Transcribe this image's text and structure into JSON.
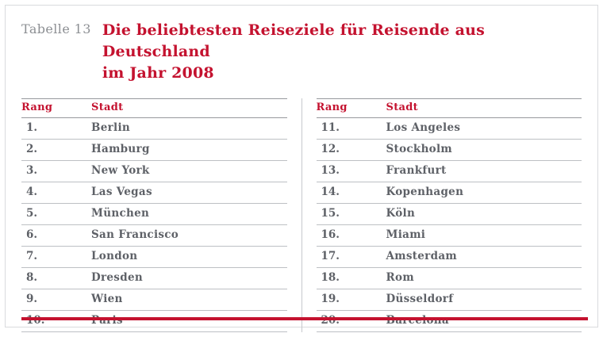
{
  "page": {
    "title_prefix": "Tabelle 13",
    "title_line1": "Die beliebtesten Reiseziele für Reisende aus Deutschland",
    "title_line2": "im Jahr 2008",
    "accent_color": "#c4122f",
    "body_text_color": "#5e6167"
  },
  "table": {
    "columns": {
      "rank": "Rang",
      "city": "Stadt"
    },
    "left_rows": [
      {
        "rang": "1.",
        "stadt": "Berlin"
      },
      {
        "rang": "2.",
        "stadt": "Hamburg"
      },
      {
        "rang": "3.",
        "stadt": "New York"
      },
      {
        "rang": "4.",
        "stadt": "Las Vegas"
      },
      {
        "rang": "5.",
        "stadt": "München"
      },
      {
        "rang": "6.",
        "stadt": "San Francisco"
      },
      {
        "rang": "7.",
        "stadt": "London"
      },
      {
        "rang": "8.",
        "stadt": "Dresden"
      },
      {
        "rang": "9.",
        "stadt": "Wien"
      },
      {
        "rang": "10.",
        "stadt": "Paris"
      }
    ],
    "right_rows": [
      {
        "rang": "11.",
        "stadt": "Los Angeles"
      },
      {
        "rang": "12.",
        "stadt": "Stockholm"
      },
      {
        "rang": "13.",
        "stadt": "Frankfurt"
      },
      {
        "rang": "14.",
        "stadt": "Kopenhagen"
      },
      {
        "rang": "15.",
        "stadt": "Köln"
      },
      {
        "rang": "16.",
        "stadt": "Miami"
      },
      {
        "rang": "17.",
        "stadt": "Amsterdam"
      },
      {
        "rang": "18.",
        "stadt": "Rom"
      },
      {
        "rang": "19.",
        "stadt": "Düsseldorf"
      },
      {
        "rang": "20.",
        "stadt": "Barcelona"
      }
    ]
  }
}
